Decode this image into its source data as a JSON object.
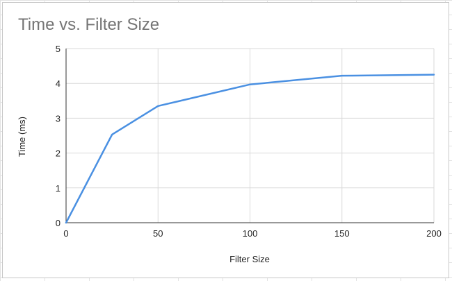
{
  "chart_data": {
    "type": "line",
    "title": "Time vs. Filter Size",
    "xlabel": "Filter Size",
    "ylabel": "Time (ms)",
    "xlim": [
      0,
      200
    ],
    "ylim": [
      0,
      5
    ],
    "x_ticks": [
      0,
      50,
      100,
      150,
      200
    ],
    "y_ticks": [
      0,
      1,
      2,
      3,
      4,
      5
    ],
    "grid": true,
    "legend": "none",
    "series": [
      {
        "color": "#4a90e2",
        "points": [
          {
            "x": 0,
            "y": 0
          },
          {
            "x": 25,
            "y": 2.53
          },
          {
            "x": 50,
            "y": 3.35
          },
          {
            "x": 100,
            "y": 3.97
          },
          {
            "x": 150,
            "y": 4.22
          },
          {
            "x": 200,
            "y": 4.25
          }
        ]
      }
    ]
  }
}
